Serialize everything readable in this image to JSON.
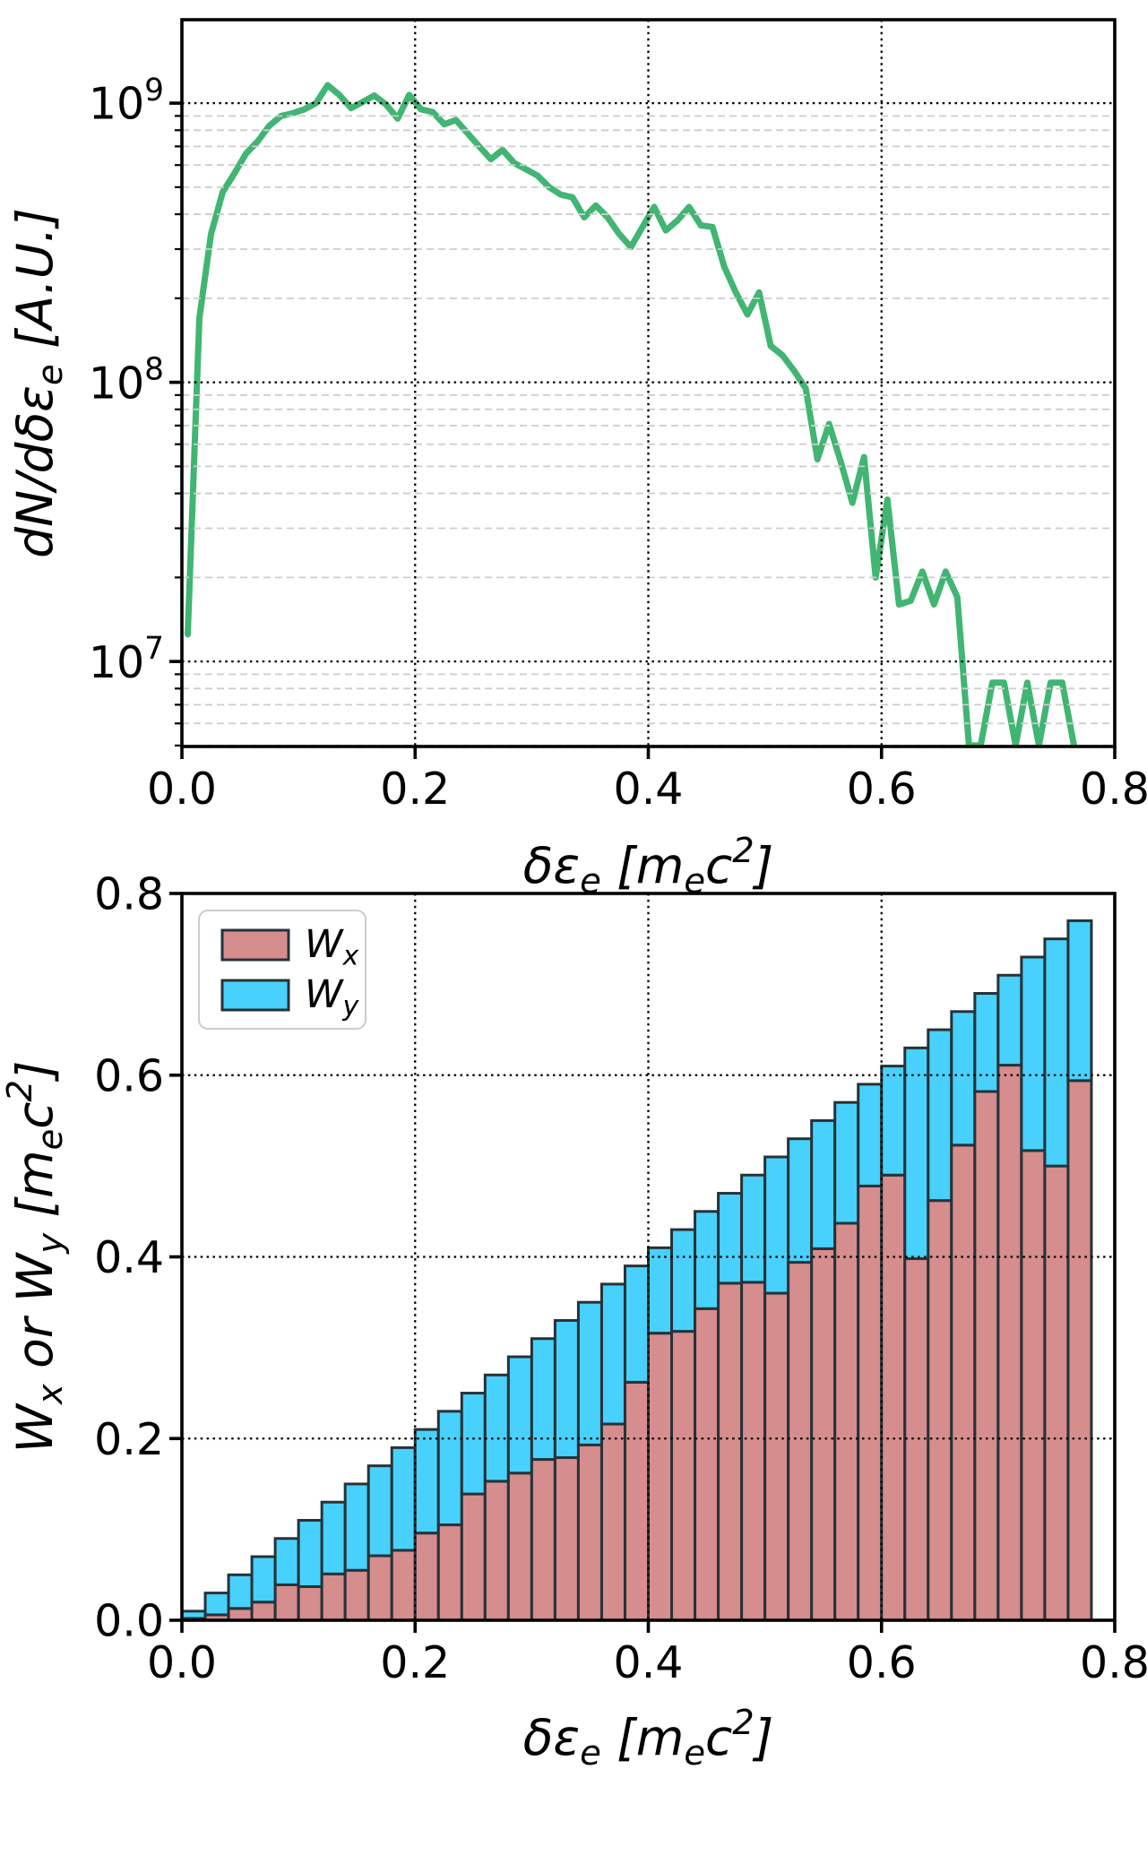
{
  "page": {
    "background": "#ffffff"
  },
  "chart_data": [
    {
      "type": "line",
      "title": "",
      "xlabel": "δε_{e} [m_{e}c^{2}]",
      "ylabel": "dN/dδε_{e} [A.U.]",
      "xlim": [
        0.0,
        0.8
      ],
      "ylog": true,
      "ylim": [
        4960000,
        1990000000
      ],
      "xtick_values": [
        0.0,
        0.2,
        0.4,
        0.6,
        0.8
      ],
      "xtick_labels": [
        "0.0",
        "0.2",
        "0.4",
        "0.6",
        "0.8"
      ],
      "ytick_values": [
        10000000,
        100000000,
        1000000000
      ],
      "ytick_labels": [
        "10^{7}",
        "10^{8}",
        "10^{9}"
      ],
      "grid": {
        "major": "black dotted",
        "minor": "light-gray dashed",
        "axisbelow": false
      },
      "line_color": "#41b572",
      "line_width": 7,
      "x": [
        0.005,
        0.015,
        0.025,
        0.035,
        0.045,
        0.055,
        0.065,
        0.075,
        0.085,
        0.095,
        0.105,
        0.115,
        0.125,
        0.135,
        0.145,
        0.155,
        0.165,
        0.175,
        0.185,
        0.195,
        0.205,
        0.215,
        0.225,
        0.235,
        0.245,
        0.255,
        0.265,
        0.275,
        0.285,
        0.295,
        0.305,
        0.315,
        0.325,
        0.335,
        0.345,
        0.355,
        0.365,
        0.375,
        0.385,
        0.395,
        0.405,
        0.415,
        0.425,
        0.435,
        0.445,
        0.455,
        0.465,
        0.475,
        0.485,
        0.495,
        0.505,
        0.515,
        0.525,
        0.535,
        0.545,
        0.555,
        0.565,
        0.575,
        0.585,
        0.595,
        0.605,
        0.615,
        0.625,
        0.635,
        0.645,
        0.655,
        0.665,
        0.675,
        0.685,
        0.695,
        0.705,
        0.715,
        0.725,
        0.735,
        0.745,
        0.755,
        0.765
      ],
      "y": [
        12500000,
        170000000,
        340000000,
        480000000,
        560000000,
        660000000,
        730000000,
        830000000,
        900000000,
        920000000,
        950000000,
        1000000000,
        1160000000,
        1070000000,
        960000000,
        1010000000,
        1065000000,
        990000000,
        880000000,
        1070000000,
        950000000,
        930000000,
        840000000,
        870000000,
        780000000,
        700000000,
        630000000,
        680000000,
        610000000,
        580000000,
        550000000,
        500000000,
        470000000,
        460000000,
        390000000,
        430000000,
        390000000,
        340000000,
        305000000,
        360000000,
        425000000,
        350000000,
        380000000,
        425000000,
        365000000,
        360000000,
        260000000,
        210000000,
        175000000,
        210000000,
        135000000,
        125000000,
        110000000,
        95000000,
        53000000,
        71000000,
        52000000,
        37000000,
        54000000,
        20000000,
        38000000,
        16000000,
        16500000,
        21000000,
        16000000,
        21000000,
        17000000,
        5000000,
        5000000,
        8400000,
        8400000,
        5000000,
        8400000,
        5000000,
        8400000,
        8400000,
        5000000
      ]
    },
    {
      "type": "bar",
      "stacked": true,
      "title": "",
      "xlabel": "δε_{e} [m_{e}c^{2}]",
      "ylabel": "W_{x} or W_{y} [m_{e}c^{2}]",
      "xlim": [
        0.0,
        0.8
      ],
      "ylim": [
        0.0,
        0.8
      ],
      "xtick_values": [
        0.0,
        0.2,
        0.4,
        0.6,
        0.8
      ],
      "xtick_labels": [
        "0.0",
        "0.2",
        "0.4",
        "0.6",
        "0.8"
      ],
      "ytick_values": [
        0.0,
        0.2,
        0.4,
        0.6,
        0.8
      ],
      "ytick_labels": [
        "0.0",
        "0.2",
        "0.4",
        "0.6",
        "0.8"
      ],
      "grid": {
        "major": "black dotted",
        "axisbelow": false
      },
      "bar_width": 0.02,
      "edge_color": "#263238",
      "edge_width": 3,
      "legend": {
        "position": "upper left"
      },
      "categories": [
        0.01,
        0.03,
        0.05,
        0.07,
        0.09,
        0.11,
        0.13,
        0.15,
        0.17,
        0.19,
        0.21,
        0.23,
        0.25,
        0.27,
        0.29,
        0.31,
        0.33,
        0.35,
        0.37,
        0.39,
        0.41,
        0.43,
        0.45,
        0.47,
        0.49,
        0.51,
        0.53,
        0.55,
        0.57,
        0.59,
        0.61,
        0.63,
        0.65,
        0.67,
        0.69,
        0.71,
        0.73,
        0.75,
        0.77
      ],
      "series": [
        {
          "name": "W_{x}",
          "color": "#d68d8d",
          "values": [
            0.002,
            0.006,
            0.013,
            0.02,
            0.039,
            0.037,
            0.051,
            0.055,
            0.071,
            0.077,
            0.096,
            0.105,
            0.139,
            0.153,
            0.162,
            0.177,
            0.179,
            0.193,
            0.216,
            0.262,
            0.316,
            0.318,
            0.343,
            0.371,
            0.372,
            0.36,
            0.394,
            0.409,
            0.437,
            0.478,
            0.49,
            0.398,
            0.462,
            0.523,
            0.582,
            0.611,
            0.517,
            0.5,
            0.594
          ]
        },
        {
          "name": "W_{y}",
          "color": "#48d1fc",
          "values": [
            0.008,
            0.024,
            0.037,
            0.05,
            0.051,
            0.073,
            0.079,
            0.095,
            0.099,
            0.113,
            0.114,
            0.125,
            0.111,
            0.117,
            0.128,
            0.133,
            0.151,
            0.157,
            0.154,
            0.128,
            0.094,
            0.112,
            0.107,
            0.099,
            0.118,
            0.15,
            0.136,
            0.141,
            0.133,
            0.112,
            0.12,
            0.232,
            0.188,
            0.147,
            0.108,
            0.099,
            0.213,
            0.25,
            0.176
          ]
        }
      ]
    }
  ]
}
